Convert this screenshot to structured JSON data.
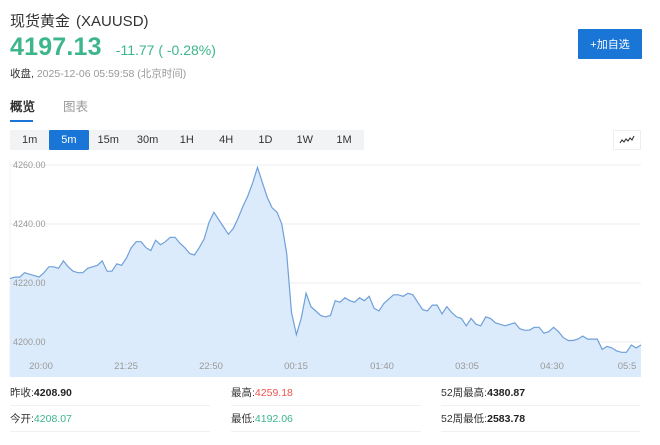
{
  "header": {
    "name": "现货黄金",
    "code": "(XAUUSD)",
    "price": "4197.13",
    "change": "-11.77 ( -0.28%)",
    "status_label": "收盘,",
    "timestamp": "2025-12-06 05:59:58",
    "timezone": "(北京时间)",
    "add_button": "+加自选",
    "price_color": "#3cb68a",
    "accent_color": "#1976d6"
  },
  "tabs": [
    {
      "label": "概览",
      "active": true
    },
    {
      "label": "图表",
      "active": false
    }
  ],
  "periods": [
    {
      "label": "1m",
      "active": false
    },
    {
      "label": "5m",
      "active": true
    },
    {
      "label": "15m",
      "active": false
    },
    {
      "label": "30m",
      "active": false
    },
    {
      "label": "1H",
      "active": false
    },
    {
      "label": "4H",
      "active": false
    },
    {
      "label": "1D",
      "active": false
    },
    {
      "label": "1W",
      "active": false
    },
    {
      "label": "1M",
      "active": false
    }
  ],
  "chart_type_icon": "line-chart-icon",
  "chart_data": {
    "type": "area",
    "title": "",
    "xlabel": "",
    "ylabel": "",
    "ylim": [
      4196,
      4261
    ],
    "y_ticks": [
      "4260.00",
      "4240.00",
      "4220.00",
      "4200.00"
    ],
    "x_ticks": [
      "20:00",
      "21:25",
      "22:50",
      "00:15",
      "01:40",
      "03:05",
      "04:30",
      "05:5"
    ],
    "grid": true,
    "legend": "none",
    "line_color": "#6fa0d8",
    "fill_color": "#dcebfb",
    "series": [
      {
        "name": "XAUUSD 5m",
        "values": [
          4221.5,
          4222,
          4222,
          4223.5,
          4223,
          4222.5,
          4222,
          4223.5,
          4225.5,
          4225.5,
          4225,
          4227.5,
          4225.5,
          4224,
          4223.5,
          4223.5,
          4225,
          4225.5,
          4226,
          4227.5,
          4224,
          4224,
          4226.5,
          4226,
          4228.5,
          4232,
          4234,
          4234,
          4232,
          4231,
          4234.5,
          4233,
          4234,
          4235.5,
          4235.5,
          4233.5,
          4232,
          4230,
          4229.5,
          4232,
          4235,
          4240.5,
          4244,
          4241.5,
          4239,
          4236.5,
          4238.5,
          4242,
          4246,
          4249.5,
          4254,
          4259.2,
          4254,
          4249,
          4245.5,
          4244,
          4240,
          4230,
          4210,
          4202.5,
          4208,
          4216.5,
          4212,
          4210.5,
          4209,
          4208.5,
          4209,
          4214,
          4213.5,
          4215,
          4214,
          4213.5,
          4215,
          4214,
          4215.5,
          4211.5,
          4210.5,
          4213,
          4214.5,
          4216,
          4216,
          4215.5,
          4216.5,
          4216,
          4213.5,
          4211,
          4210.5,
          4212.5,
          4212.5,
          4209.5,
          4212,
          4210,
          4208.5,
          4208,
          4205.5,
          4208,
          4206,
          4205.5,
          4208.5,
          4208,
          4206.5,
          4206,
          4205.5,
          4206,
          4206.5,
          4204.5,
          4204,
          4204,
          4205,
          4205,
          4203,
          4203.5,
          4205,
          4203.5,
          4201.5,
          4200.5,
          4200.5,
          4201,
          4202,
          4201,
          4201,
          4201,
          4197.5,
          4198.5,
          4198,
          4197,
          4196.5,
          4196.5,
          4199,
          4198,
          4199
        ]
      }
    ]
  },
  "stats": {
    "row1": [
      {
        "label": "昨收:",
        "value": "4208.90",
        "tone": "neutral"
      },
      {
        "label": "最高:",
        "value": "4259.18",
        "tone": "red"
      },
      {
        "label": "52周最高:",
        "value": "4380.87",
        "tone": "neutral"
      }
    ],
    "row2": [
      {
        "label": "今开:",
        "value": "4208.07",
        "tone": "green"
      },
      {
        "label": "最低:",
        "value": "4192.06",
        "tone": "green"
      },
      {
        "label": "52周最低:",
        "value": "2583.78",
        "tone": "neutral"
      }
    ]
  }
}
